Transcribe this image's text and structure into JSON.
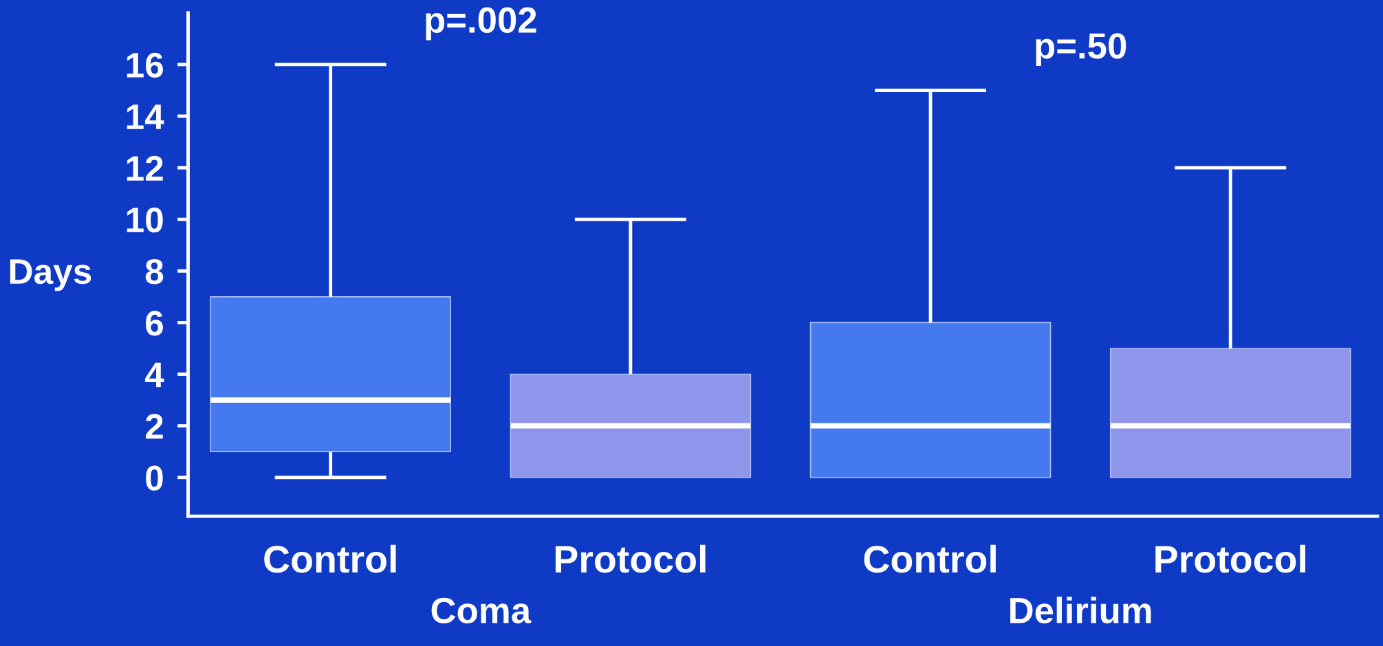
{
  "chart_data": {
    "type": "box",
    "categories": [
      "Control",
      "Protocol",
      "Control",
      "Protocol"
    ],
    "boxes": [
      {
        "low": 0,
        "q1": 1,
        "median": 3,
        "q3": 7,
        "high": 16
      },
      {
        "low": 0,
        "q1": 0,
        "median": 2,
        "q3": 4,
        "high": 10
      },
      {
        "low": 0,
        "q1": 0,
        "median": 2,
        "q3": 6,
        "high": 15
      },
      {
        "low": 0,
        "q1": 0,
        "median": 2,
        "q3": 5,
        "high": 12
      }
    ],
    "colors": [
      "#4479f0",
      "#8e95ea",
      "#4479f0",
      "#8e95ea"
    ],
    "ylabel": "Days",
    "ylim": [
      -1.5,
      18
    ],
    "yticks": [
      0,
      2,
      4,
      6,
      8,
      10,
      12,
      14,
      16
    ],
    "grid": false,
    "legend": false,
    "annotations": [
      "p=.002",
      "p=.50",
      "Coma",
      "Delirium"
    ]
  }
}
